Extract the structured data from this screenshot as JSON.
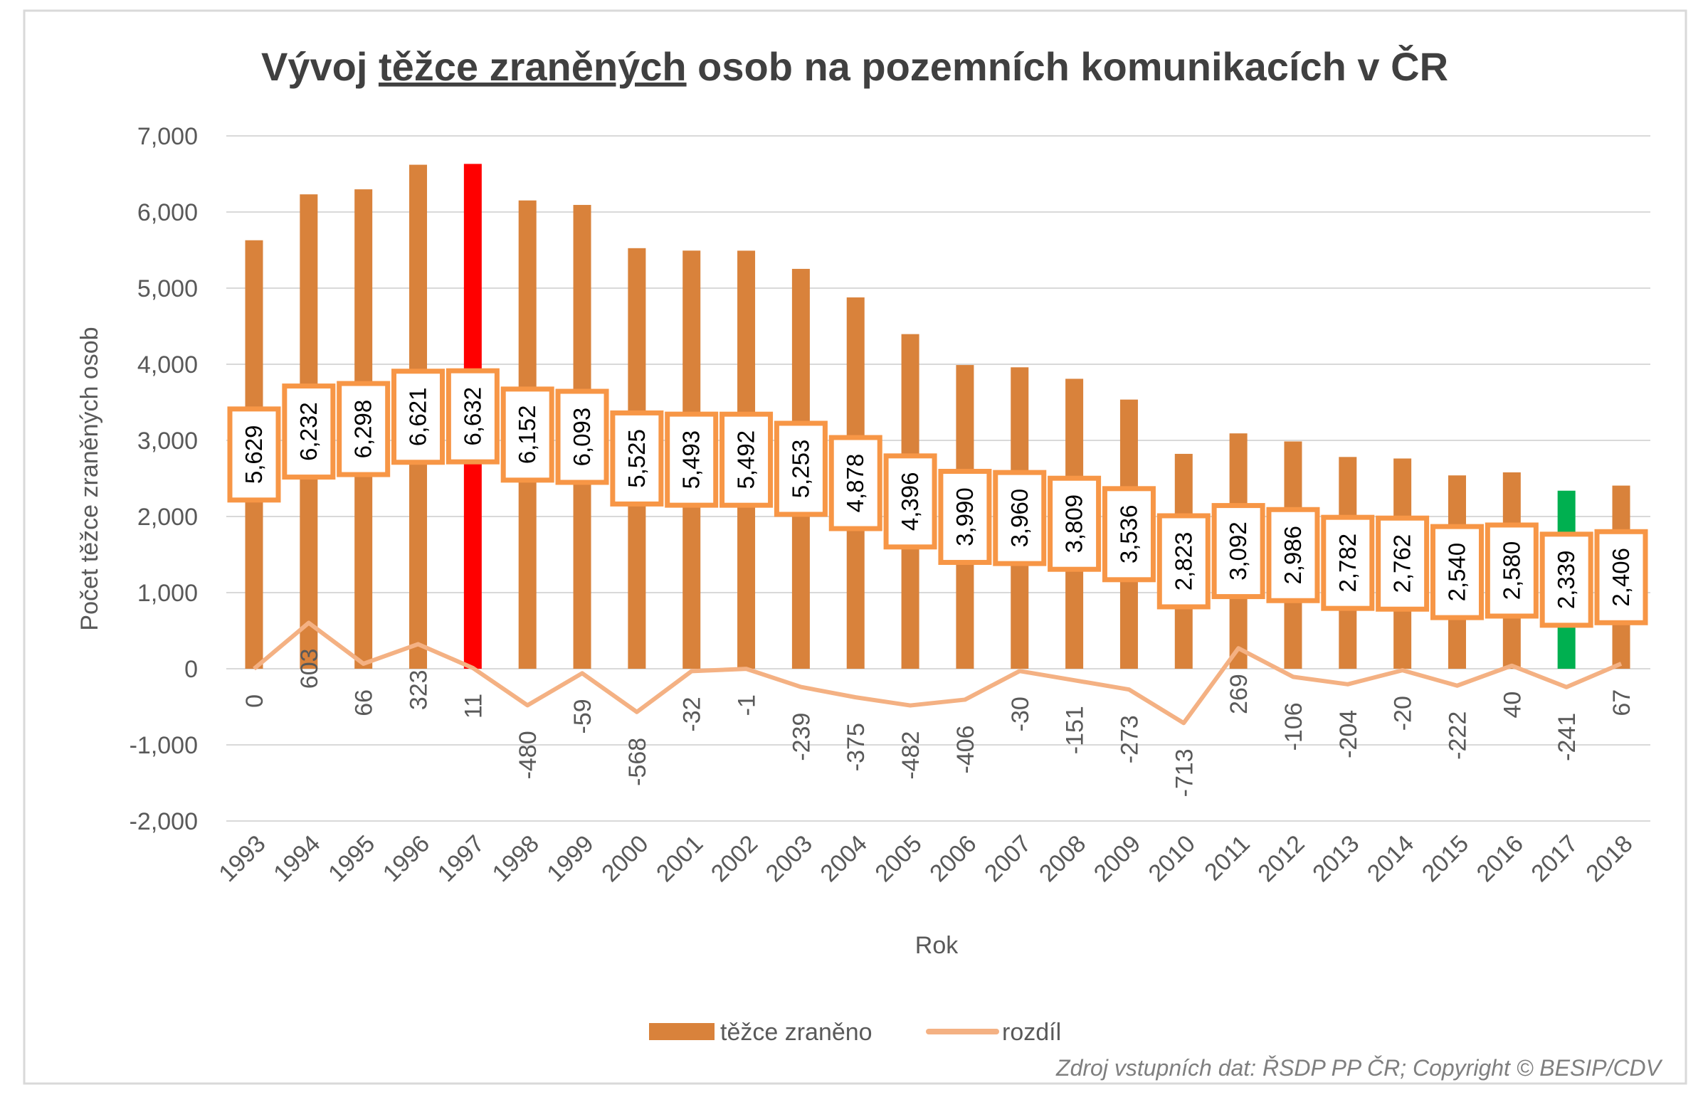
{
  "chart_data": {
    "type": "bar",
    "title_parts": [
      "Vývoj ",
      "těžce zraněných",
      " osob na pozemních komunikacích v ČR"
    ],
    "xlabel": "Rok",
    "ylabel": "Počet těžce zraněných osob",
    "ylim": [
      -2000,
      7000
    ],
    "yticks": [
      7000,
      6000,
      5000,
      4000,
      3000,
      2000,
      1000,
      0,
      -1000,
      -2000
    ],
    "ytick_labels": [
      "7,000",
      "6,000",
      "5,000",
      "4,000",
      "3,000",
      "2,000",
      "1,000",
      "0",
      "-1,000",
      "-2,000"
    ],
    "grid": true,
    "legend_placement": "bottom",
    "categories": [
      "1993",
      "1994",
      "1995",
      "1996",
      "1997",
      "1998",
      "1999",
      "2000",
      "2001",
      "2002",
      "2003",
      "2004",
      "2005",
      "2006",
      "2007",
      "2008",
      "2009",
      "2010",
      "2011",
      "2012",
      "2013",
      "2014",
      "2015",
      "2016",
      "2017",
      "2018"
    ],
    "series": [
      {
        "name": "těžce zraněno",
        "type": "bar",
        "color": "#D9823B",
        "values": [
          5629,
          6232,
          6298,
          6621,
          6632,
          6152,
          6093,
          5525,
          5493,
          5492,
          5253,
          4878,
          4396,
          3990,
          3960,
          3809,
          3536,
          2823,
          3092,
          2986,
          2782,
          2762,
          2540,
          2580,
          2339,
          2406
        ],
        "labels": [
          "5,629",
          "6,232",
          "6,298",
          "6,621",
          "6,632",
          "6,152",
          "6,093",
          "5,525",
          "5,493",
          "5,492",
          "5,253",
          "4,878",
          "4,396",
          "3,990",
          "3,960",
          "3,809",
          "3,536",
          "2,823",
          "3,092",
          "2,986",
          "2,782",
          "2,762",
          "2,540",
          "2,580",
          "2,339",
          "2,406"
        ],
        "highlight": {
          "1997": "#FF0000",
          "2017": "#00B050"
        }
      },
      {
        "name": "rozdíl",
        "type": "line",
        "color": "#F4B183",
        "values": [
          0,
          603,
          66,
          323,
          11,
          -480,
          -59,
          -568,
          -32,
          -1,
          -239,
          -375,
          -482,
          -406,
          -30,
          -151,
          -273,
          -713,
          269,
          -106,
          -204,
          -20,
          -222,
          40,
          -241,
          67
        ]
      }
    ],
    "label_box_border": "#F79646",
    "source": "Zdroj vstupních dat: ŘSDP PP ČR; Copyright © BESIP/CDV"
  }
}
